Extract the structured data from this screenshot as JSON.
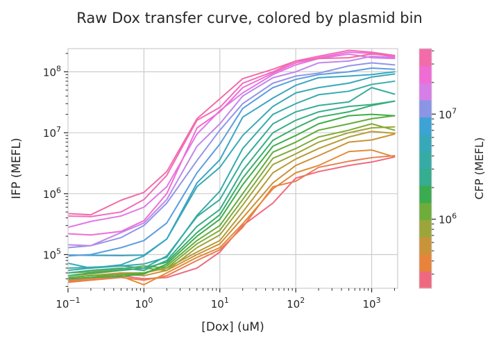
{
  "chart_data": {
    "type": "line",
    "title": "Raw Dox transfer curve, colored by plasmid bin",
    "xlabel": "[Dox] (uM)",
    "ylabel": "IFP (MEFL)",
    "colorbar_label": "CFP (MEFL)",
    "x_scale": "log",
    "y_scale": "log",
    "xlim": [
      0.1,
      2200
    ],
    "ylim": [
      28000,
      240000000
    ],
    "grid": true,
    "x_ticks": [
      {
        "value": 0.1,
        "base": "10",
        "exp": "−1"
      },
      {
        "value": 1,
        "base": "10",
        "exp": "0"
      },
      {
        "value": 10,
        "base": "10",
        "exp": "1"
      },
      {
        "value": 100,
        "base": "10",
        "exp": "2"
      },
      {
        "value": 1000,
        "base": "10",
        "exp": "3"
      }
    ],
    "y_ticks": [
      {
        "value": 100000,
        "base": "10",
        "exp": "5"
      },
      {
        "value": 1000000,
        "base": "10",
        "exp": "6"
      },
      {
        "value": 10000000,
        "base": "10",
        "exp": "7"
      },
      {
        "value": 100000000,
        "base": "10",
        "exp": "8"
      }
    ],
    "colorbar": {
      "scale": "log",
      "range": [
        220000,
        42000000
      ],
      "ticks": [
        {
          "value": 1000000,
          "base": "10",
          "exp": "6"
        },
        {
          "value": 10000000,
          "base": "10",
          "exp": "7"
        }
      ],
      "colors": [
        "#f0687f",
        "#e8833a",
        "#c99339",
        "#9ca53a",
        "#6ead39",
        "#3aac4f",
        "#35ad8e",
        "#36aba6",
        "#37a7ba",
        "#3ca3d4",
        "#8a95e6",
        "#d67de8",
        "#f06bd4",
        "#f36ba8"
      ]
    },
    "x": [
      0.1,
      0.2,
      0.5,
      1,
      2,
      5,
      10,
      20,
      50,
      100,
      200,
      500,
      1000,
      2000
    ],
    "series": [
      {
        "color": "#f0687f",
        "values": [
          38000,
          40000,
          45000,
          40000,
          42000,
          60000,
          110000,
          300000,
          700000,
          1800000,
          2300000,
          2900000,
          3300000,
          4000000
        ]
      },
      {
        "color": "#ea7d4f",
        "values": [
          35000,
          38000,
          42000,
          38000,
          45000,
          80000,
          120000,
          280000,
          1300000,
          1600000,
          2700000,
          3400000,
          3900000,
          4200000
        ]
      },
      {
        "color": "#e28b35",
        "values": [
          36000,
          40000,
          44000,
          32000,
          50000,
          90000,
          130000,
          320000,
          1200000,
          2200000,
          2900000,
          4900000,
          5200000,
          4000000
        ]
      },
      {
        "color": "#cc9235",
        "values": [
          40000,
          42000,
          48000,
          45000,
          55000,
          100000,
          150000,
          400000,
          1500000,
          2900000,
          4200000,
          7000000,
          7600000,
          9500000
        ]
      },
      {
        "color": "#b89a36",
        "values": [
          42000,
          45000,
          50000,
          50000,
          60000,
          110000,
          170000,
          500000,
          2200000,
          3700000,
          5500000,
          8500000,
          10500000,
          9800000
        ]
      },
      {
        "color": "#9ea436",
        "values": [
          45000,
          48000,
          55000,
          60000,
          55000,
          130000,
          210000,
          650000,
          3000000,
          4500000,
          7000000,
          10000000,
          12000000,
          12500000
        ]
      },
      {
        "color": "#82aa38",
        "values": [
          50000,
          52000,
          58000,
          65000,
          60000,
          150000,
          250000,
          800000,
          3800000,
          5500000,
          8500000,
          11000000,
          14000000,
          11000000
        ]
      },
      {
        "color": "#62ac3b",
        "values": [
          42000,
          45000,
          47000,
          50000,
          65000,
          170000,
          300000,
          1000000,
          4800000,
          7000000,
          11000000,
          14000000,
          17000000,
          19000000
        ]
      },
      {
        "color": "#3ead47",
        "values": [
          40000,
          42000,
          44000,
          48000,
          70000,
          200000,
          380000,
          1400000,
          6000000,
          9000000,
          14000000,
          19000000,
          20000000,
          19000000
        ]
      },
      {
        "color": "#38ad6b",
        "values": [
          45000,
          50000,
          55000,
          60000,
          75000,
          230000,
          450000,
          1800000,
          7500000,
          12000000,
          18000000,
          22000000,
          28000000,
          33000000
        ]
      },
      {
        "color": "#36ad88",
        "values": [
          50000,
          55000,
          60000,
          55000,
          80000,
          290000,
          550000,
          2400000,
          10000000,
          16000000,
          22000000,
          27000000,
          29000000,
          33000000
        ]
      },
      {
        "color": "#36ac9c",
        "values": [
          55000,
          60000,
          65000,
          60000,
          95000,
          420000,
          800000,
          3500000,
          14000000,
          22000000,
          28000000,
          32000000,
          55000000,
          43000000
        ]
      },
      {
        "color": "#37aaab",
        "values": [
          60000,
          62000,
          65000,
          70000,
          90000,
          440000,
          1100000,
          5500000,
          20000000,
          30000000,
          42000000,
          48000000,
          62000000,
          70000000
        ]
      },
      {
        "color": "#38a8b6",
        "values": [
          72000,
          60000,
          68000,
          95000,
          180000,
          1300000,
          2700000,
          9000000,
          27000000,
          45000000,
          55000000,
          65000000,
          82000000,
          92000000
        ]
      },
      {
        "color": "#3aa5c4",
        "values": [
          98000,
          97000,
          96000,
          98000,
          180000,
          1500000,
          3600000,
          18000000,
          37000000,
          60000000,
          80000000,
          85000000,
          90000000,
          100000000
        ]
      },
      {
        "color": "#5b9de0",
        "values": [
          95000,
          100000,
          130000,
          170000,
          330000,
          2200000,
          6500000,
          25000000,
          55000000,
          75000000,
          90000000,
          100000000,
          115000000,
          110000000
        ]
      },
      {
        "color": "#9294e8",
        "values": [
          130000,
          140000,
          190000,
          300000,
          700000,
          3500000,
          11000000,
          30000000,
          65000000,
          85000000,
          95000000,
          125000000,
          140000000,
          130000000
        ]
      },
      {
        "color": "#bf87ea",
        "values": [
          145000,
          140000,
          230000,
          330000,
          800000,
          6000000,
          14000000,
          40000000,
          80000000,
          100000000,
          140000000,
          150000000,
          180000000,
          170000000
        ]
      },
      {
        "color": "#e276e6",
        "values": [
          280000,
          350000,
          430000,
          600000,
          1300000,
          9500000,
          23000000,
          45000000,
          90000000,
          130000000,
          165000000,
          195000000,
          170000000,
          165000000
        ]
      },
      {
        "color": "#f06cd4",
        "values": [
          220000,
          210000,
          240000,
          360000,
          1000000,
          12000000,
          22000000,
          55000000,
          95000000,
          140000000,
          170000000,
          210000000,
          200000000,
          175000000
        ]
      },
      {
        "color": "#f26cbc",
        "values": [
          430000,
          420000,
          500000,
          800000,
          2000000,
          16000000,
          26000000,
          65000000,
          100000000,
          150000000,
          180000000,
          225000000,
          210000000,
          185000000
        ]
      },
      {
        "color": "#f36ba6",
        "values": [
          470000,
          450000,
          780000,
          1050000,
          2300000,
          17000000,
          36000000,
          77000000,
          110000000,
          150000000,
          165000000,
          170000000,
          195000000,
          185000000
        ]
      }
    ]
  }
}
